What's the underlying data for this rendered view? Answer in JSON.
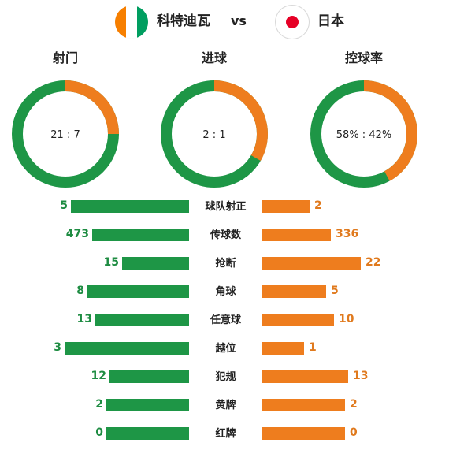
{
  "colors": {
    "home": "#1e9646",
    "away": "#ee7d1e",
    "home_text": "#1e8c42",
    "away_text": "#e07a1e",
    "civ_orange": "#f77f00",
    "civ_white": "#ffffff",
    "civ_green": "#009e60",
    "jpn_red": "#e60026"
  },
  "header": {
    "home_team": "科特迪瓦",
    "vs": "vs",
    "away_team": "日本",
    "home_flag_icon": "ivory-coast-flag-icon",
    "away_flag_icon": "japan-flag-icon"
  },
  "donuts": [
    {
      "title": "射门",
      "home": 21,
      "away": 7,
      "label": "21 : 7"
    },
    {
      "title": "进球",
      "home": 2,
      "away": 1,
      "label": "2 : 1"
    },
    {
      "title": "控球率",
      "home": 58,
      "away": 42,
      "label": "58% : 42%"
    }
  ],
  "stats": [
    {
      "label": "球队射正",
      "home": "5",
      "away": "2"
    },
    {
      "label": "传球数",
      "home": "473",
      "away": "336"
    },
    {
      "label": "抢断",
      "home": "15",
      "away": "22"
    },
    {
      "label": "角球",
      "home": "8",
      "away": "5"
    },
    {
      "label": "任意球",
      "home": "13",
      "away": "10"
    },
    {
      "label": "越位",
      "home": "3",
      "away": "1"
    },
    {
      "label": "犯规",
      "home": "12",
      "away": "13"
    },
    {
      "label": "黄牌",
      "home": "2",
      "away": "2"
    },
    {
      "label": "红牌",
      "home": "0",
      "away": "0"
    }
  ]
}
